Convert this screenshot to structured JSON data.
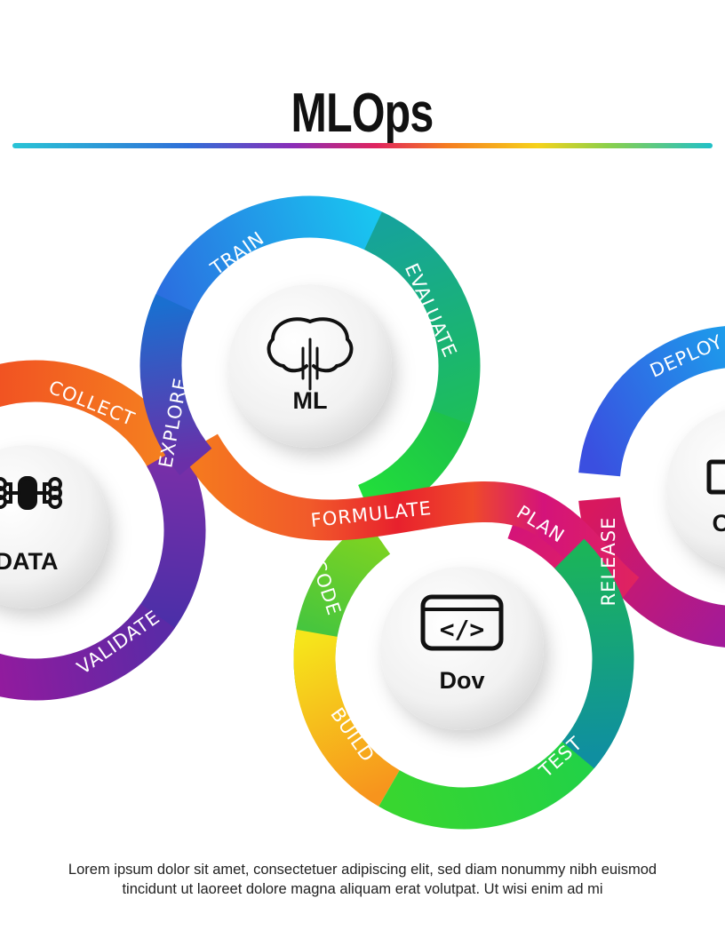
{
  "title": "MLOps",
  "colors": {
    "accent_rule": [
      "#29c4d6",
      "#2f6fd8",
      "#8a2db8",
      "#e0245e",
      "#f57c20",
      "#f6d21a",
      "#8bd04a"
    ]
  },
  "hubs": [
    {
      "label": "DATA",
      "icon": "data-network-icon"
    },
    {
      "label": "ML",
      "icon": "brain-circuit-icon"
    },
    {
      "label": "Dov",
      "icon": "code-window-icon"
    },
    {
      "label": "O",
      "icon": "operator-monitor-icon"
    }
  ],
  "stages": [
    "COLLECT",
    "EXPLORE",
    "VALIDATE",
    "TRAIN",
    "EVALUATE",
    "FORMULATE",
    "CODE",
    "BUILD",
    "TEST",
    "PLAN",
    "RELEASE",
    "DEPLOY"
  ],
  "caption": {
    "line1": "Lorem ipsum dolor sit amet, consectetuer adipiscing elit, sed diam nonummy nibh euismod",
    "line2": "tincidunt ut laoreet dolore magna aliquam erat volutpat. Ut wisi enim ad mi"
  }
}
